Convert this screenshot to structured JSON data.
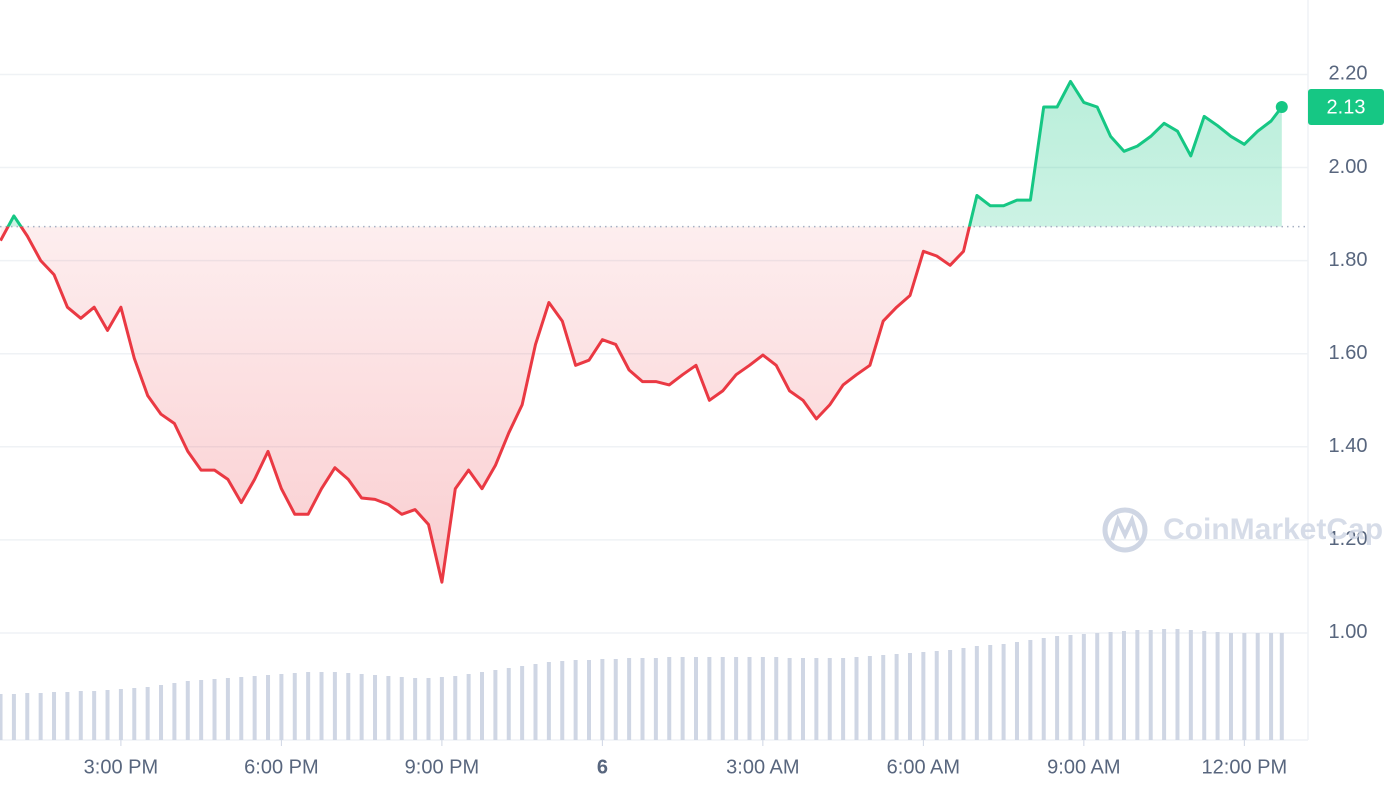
{
  "chart_data": {
    "type": "line",
    "x": [
      0.75,
      1,
      1.25,
      1.5,
      1.75,
      2,
      2.25,
      2.5,
      2.75,
      3,
      3.25,
      3.5,
      3.75,
      4,
      4.25,
      4.5,
      4.75,
      5,
      5.25,
      5.5,
      5.75,
      6,
      6.25,
      6.5,
      6.75,
      7,
      7.25,
      7.5,
      7.75,
      8,
      8.25,
      8.5,
      8.75,
      9,
      9.25,
      9.5,
      9.75,
      10,
      10.25,
      10.5,
      10.75,
      11,
      11.25,
      11.5,
      11.75,
      12,
      12.25,
      12.5,
      12.75,
      13,
      13.25,
      13.5,
      13.75,
      14,
      14.25,
      14.5,
      14.75,
      15,
      15.25,
      15.5,
      15.75,
      16,
      16.25,
      16.5,
      16.75,
      17,
      17.25,
      17.5,
      17.75,
      18,
      18.25,
      18.5,
      18.75,
      19,
      19.25,
      19.5,
      19.75,
      20,
      20.25,
      20.5,
      20.75,
      21,
      21.25,
      21.5,
      21.75,
      22,
      22.25,
      22.5,
      22.75,
      23,
      23.25,
      23.5,
      23.75,
      24,
      24.25,
      24.5,
      24.7
    ],
    "values": [
      1.843,
      1.896,
      1.853,
      1.8,
      1.77,
      1.7,
      1.676,
      1.7,
      1.65,
      1.7,
      1.59,
      1.51,
      1.47,
      1.45,
      1.39,
      1.35,
      1.35,
      1.33,
      1.28,
      1.33,
      1.39,
      1.31,
      1.255,
      1.255,
      1.31,
      1.355,
      1.33,
      1.29,
      1.287,
      1.276,
      1.255,
      1.265,
      1.233,
      1.109,
      1.31,
      1.35,
      1.31,
      1.36,
      1.43,
      1.49,
      1.62,
      1.71,
      1.67,
      1.575,
      1.586,
      1.63,
      1.62,
      1.565,
      1.54,
      1.54,
      1.533,
      1.555,
      1.575,
      1.5,
      1.52,
      1.555,
      1.575,
      1.597,
      1.575,
      1.52,
      1.5,
      1.46,
      1.49,
      1.533,
      1.555,
      1.575,
      1.67,
      1.7,
      1.725,
      1.82,
      1.81,
      1.79,
      1.82,
      1.94,
      1.918,
      1.918,
      1.93,
      1.93,
      2.13,
      2.13,
      2.185,
      2.14,
      2.13,
      2.067,
      2.035,
      2.046,
      2.067,
      2.095,
      2.078,
      2.025,
      2.11,
      2.09,
      2.067,
      2.05,
      2.078,
      2.1,
      2.13
    ],
    "volume": [
      46,
      46,
      47,
      47,
      48,
      48,
      49,
      49,
      50,
      51,
      52,
      53,
      55,
      57,
      59,
      60,
      61,
      62,
      63,
      64,
      65,
      66,
      67,
      68,
      68,
      68,
      67,
      66,
      65,
      64,
      63,
      62,
      62,
      63,
      64,
      66,
      68,
      70,
      72,
      74,
      76,
      78,
      79,
      80,
      80,
      81,
      81,
      82,
      82,
      82,
      83,
      83,
      83,
      83,
      83,
      83,
      83,
      83,
      83,
      82,
      82,
      82,
      82,
      82,
      83,
      84,
      85,
      86,
      87,
      88,
      89,
      90,
      92,
      94,
      95,
      96,
      98,
      100,
      102,
      104,
      105,
      106,
      107,
      108,
      109,
      110,
      110,
      111,
      111,
      110,
      109,
      108,
      107,
      107,
      107,
      107,
      107
    ],
    "baseline": 1.873,
    "up_color": "#16c784",
    "down_color": "#ea3943",
    "volume_color": "#cfd6e4",
    "xlim": [
      0.74,
      25.19
    ],
    "ylim": [
      0.77,
      2.36
    ],
    "xticks": [
      {
        "value": 3,
        "label": "3:00 PM"
      },
      {
        "value": 6,
        "label": "6:00 PM"
      },
      {
        "value": 9,
        "label": "9:00 PM"
      },
      {
        "value": 12,
        "label": "6"
      },
      {
        "value": 15,
        "label": "3:00 AM"
      },
      {
        "value": 18,
        "label": "6:00 AM"
      },
      {
        "value": 21,
        "label": "9:00 AM"
      },
      {
        "value": 24,
        "label": "12:00 PM"
      }
    ],
    "yticks": [
      {
        "value": 1,
        "label": "1.00"
      },
      {
        "value": 1.2,
        "label": "1.20"
      },
      {
        "value": 1.4,
        "label": "1.40"
      },
      {
        "value": 1.6,
        "label": "1.60"
      },
      {
        "value": 1.8,
        "label": "1.80"
      },
      {
        "value": 2,
        "label": "2.00"
      },
      {
        "value": 2.2,
        "label": "2.20"
      }
    ],
    "grid": true,
    "watermark": "CoinMarketCap"
  }
}
